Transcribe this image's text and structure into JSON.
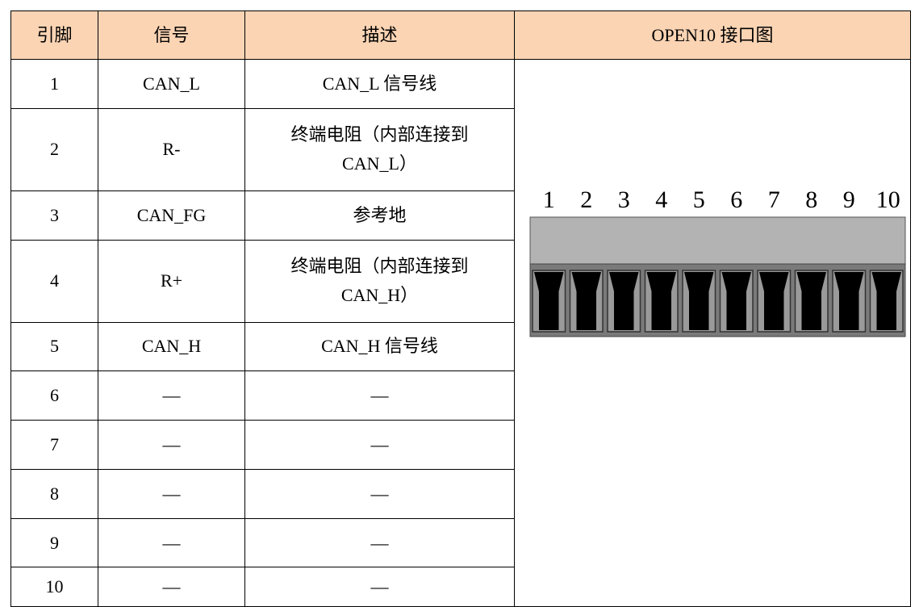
{
  "table": {
    "header": [
      "引脚",
      "信号",
      "描述",
      "OPEN10 接口图"
    ],
    "rows": [
      [
        "1",
        "CAN_L",
        [
          "CAN_L 信号线"
        ]
      ],
      [
        "2",
        "R-",
        [
          "终端电阻（内部连接到",
          "CAN_L）"
        ]
      ],
      [
        "3",
        "CAN_FG",
        [
          "参考地"
        ]
      ],
      [
        "4",
        "R+",
        [
          "终端电阻（内部连接到",
          "CAN_H）"
        ]
      ],
      [
        "5",
        "CAN_H",
        [
          "CAN_H 信号线"
        ]
      ],
      [
        "6",
        "—",
        [
          "—"
        ]
      ],
      [
        "7",
        "—",
        [
          "—"
        ]
      ],
      [
        "8",
        "—",
        [
          "—"
        ]
      ],
      [
        "9",
        "—",
        [
          "—"
        ]
      ],
      [
        "10",
        "—",
        [
          "—"
        ]
      ]
    ]
  },
  "connector": {
    "pin_labels": [
      "1",
      "2",
      "3",
      "4",
      "5",
      "6",
      "7",
      "8",
      "9",
      "10"
    ]
  }
}
